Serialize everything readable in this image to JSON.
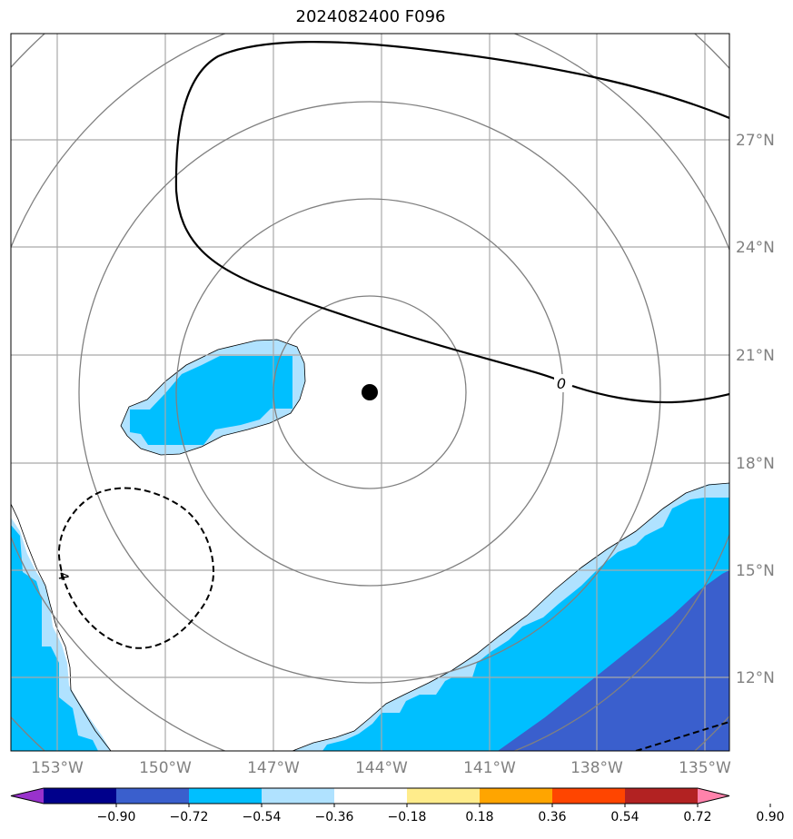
{
  "title": "2024082400 F096",
  "map": {
    "lon_labels": [
      "153°W",
      "150°W",
      "147°W",
      "144°W",
      "141°W",
      "138°W",
      "135°W"
    ],
    "lat_labels": [
      "27°N",
      "24°N",
      "21°N",
      "18°N",
      "15°N",
      "12°N"
    ],
    "storm_center": {
      "lon": -144.3,
      "lat": 19.9
    },
    "contour_labels": [
      {
        "text": "0",
        "style": "solid"
      },
      {
        "text": "-4",
        "style": "dashed"
      }
    ]
  },
  "colorbar": {
    "colors": [
      "#9932cc",
      "#00008b",
      "#3a5fcd",
      "#00bfff",
      "#b0e2ff",
      "#ffffff",
      "#ffec8b",
      "#ffa500",
      "#ff4500",
      "#b22222",
      "#ff82ab"
    ],
    "tick_labels": [
      "−0.90",
      "−0.72",
      "−0.54",
      "−0.36",
      "−0.18",
      "0.18",
      "0.36",
      "0.54",
      "0.72",
      "0.90"
    ]
  }
}
